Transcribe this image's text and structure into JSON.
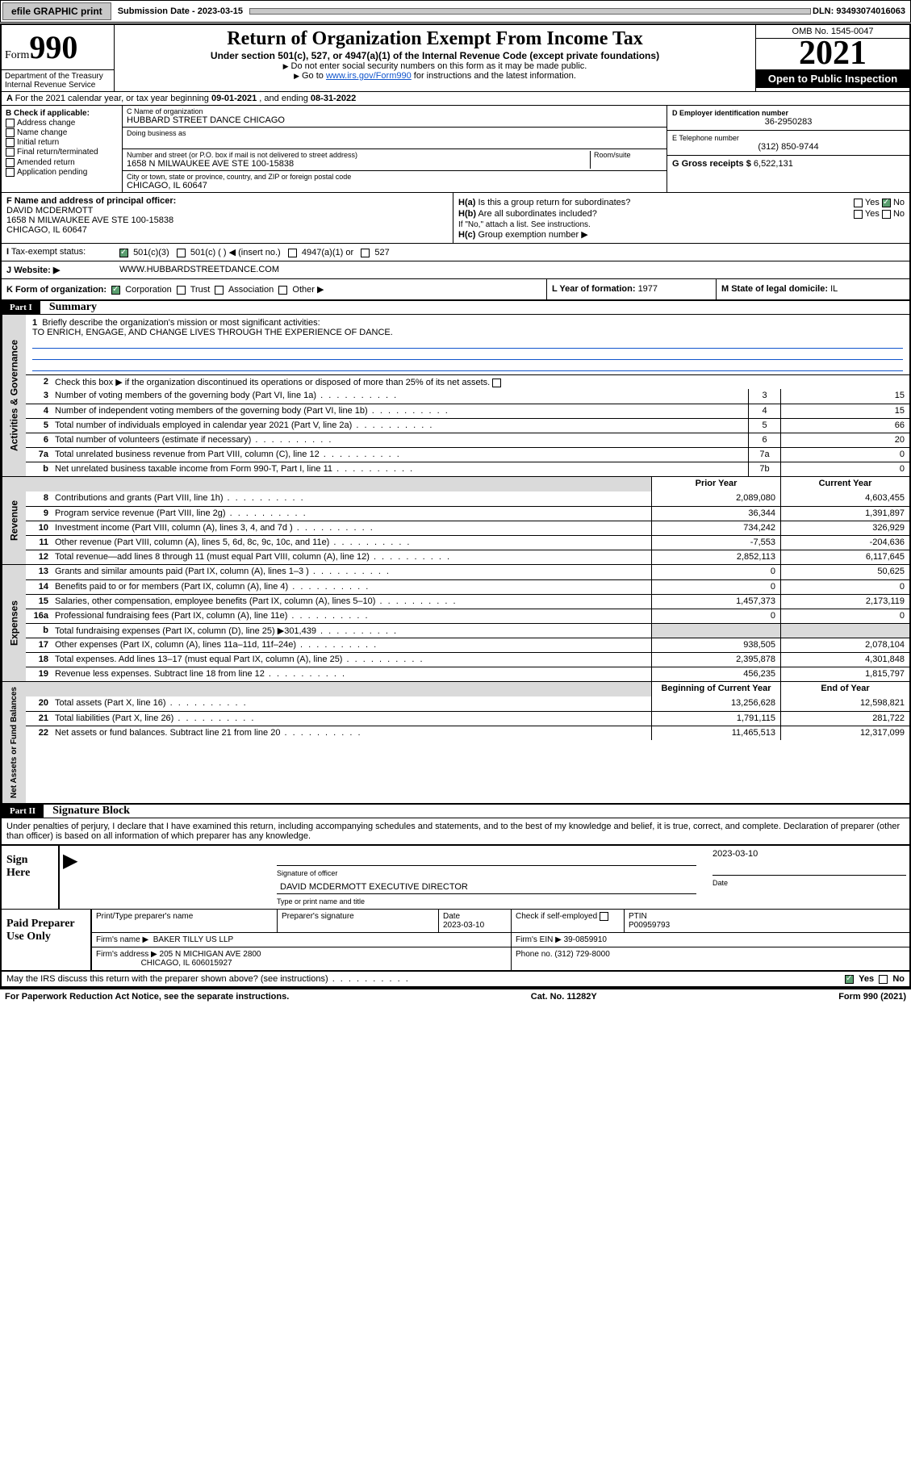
{
  "topbar": {
    "efile": "efile GRAPHIC print",
    "subdate_label": "Submission Date - ",
    "subdate": "2023-03-15",
    "dln": "DLN: 93493074016063"
  },
  "header": {
    "form_word": "Form",
    "form_num": "990",
    "title": "Return of Organization Exempt From Income Tax",
    "sub1": "Under section 501(c), 527, or 4947(a)(1) of the Internal Revenue Code (except private foundations)",
    "sub2": "Do not enter social security numbers on this form as it may be made public.",
    "sub3_pre": "Go to ",
    "sub3_link": "www.irs.gov/Form990",
    "sub3_post": " for instructions and the latest information.",
    "omb": "OMB No. 1545-0047",
    "year": "2021",
    "open": "Open to Public Inspection",
    "dept": "Department of the Treasury",
    "irs": "Internal Revenue Service"
  },
  "lineA": {
    "pre": "For the 2021 calendar year, or tax year beginning ",
    "begin": "09-01-2021",
    "mid": " , and ending ",
    "end": "08-31-2022"
  },
  "colB": {
    "hdr": "B Check if applicable:",
    "o1": "Address change",
    "o2": "Name change",
    "o3": "Initial return",
    "o4": "Final return/terminated",
    "o5": "Amended return",
    "o6": "Application pending"
  },
  "colC": {
    "name_label": "C Name of organization",
    "name": "HUBBARD STREET DANCE CHICAGO",
    "dba_label": "Doing business as",
    "addr_label": "Number and street (or P.O. box if mail is not delivered to street address)",
    "room_label": "Room/suite",
    "addr": "1658 N MILWAUKEE AVE STE 100-15838",
    "city_label": "City or town, state or province, country, and ZIP or foreign postal code",
    "city": "CHICAGO, IL  60647"
  },
  "colD": {
    "ein_label": "D Employer identification number",
    "ein": "36-2950283",
    "tel_label": "E Telephone number",
    "tel": "(312) 850-9744",
    "gross_label": "G Gross receipts $ ",
    "gross": "6,522,131"
  },
  "sectF": {
    "label": "F Name and address of principal officer:",
    "name": "DAVID MCDERMOTT",
    "addr1": "1658 N MILWAUKEE AVE STE 100-15838",
    "addr2": "CHICAGO, IL  60647"
  },
  "sectH": {
    "a": "Is this a group return for subordinates?",
    "b": "Are all subordinates included?",
    "bnote": "If \"No,\" attach a list. See instructions.",
    "c": "Group exemption number ▶",
    "yes": "Yes",
    "no": "No"
  },
  "rowI": {
    "label": "Tax-exempt status:",
    "o1": "501(c)(3)",
    "o2": "501(c) (   ) ◀ (insert no.)",
    "o3": "4947(a)(1) or",
    "o4": "527"
  },
  "rowJ": {
    "label": "Website: ▶",
    "val": "WWW.HUBBARDSTREETDANCE.COM"
  },
  "rowK": {
    "label": "K Form of organization:",
    "o1": "Corporation",
    "o2": "Trust",
    "o3": "Association",
    "o4": "Other ▶",
    "L_pre": "L Year of formation: ",
    "L": "1977",
    "M_pre": "M State of legal domicile: ",
    "M": "IL"
  },
  "part1": {
    "hdr": "Part I",
    "title": "Summary",
    "q1": "Briefly describe the organization's mission or most significant activities:",
    "mission": "TO ENRICH, ENGAGE, AND CHANGE LIVES THROUGH THE EXPERIENCE OF DANCE.",
    "q2": "Check this box ▶       if the organization discontinued its operations or disposed of more than 25% of its net assets.",
    "rows_gov": [
      {
        "n": "3",
        "d": "Number of voting members of the governing body (Part VI, line 1a)",
        "box": "3",
        "v": "15"
      },
      {
        "n": "4",
        "d": "Number of independent voting members of the governing body (Part VI, line 1b)",
        "box": "4",
        "v": "15"
      },
      {
        "n": "5",
        "d": "Total number of individuals employed in calendar year 2021 (Part V, line 2a)",
        "box": "5",
        "v": "66"
      },
      {
        "n": "6",
        "d": "Total number of volunteers (estimate if necessary)",
        "box": "6",
        "v": "20"
      },
      {
        "n": "7a",
        "d": "Total unrelated business revenue from Part VIII, column (C), line 12",
        "box": "7a",
        "v": "0"
      },
      {
        "n": "b",
        "d": "Net unrelated business taxable income from Form 990-T, Part I, line 11",
        "box": "7b",
        "v": "0"
      }
    ],
    "prior": "Prior Year",
    "current": "Current Year",
    "rows_rev": [
      {
        "n": "8",
        "d": "Contributions and grants (Part VIII, line 1h)",
        "p": "2,089,080",
        "c": "4,603,455"
      },
      {
        "n": "9",
        "d": "Program service revenue (Part VIII, line 2g)",
        "p": "36,344",
        "c": "1,391,897"
      },
      {
        "n": "10",
        "d": "Investment income (Part VIII, column (A), lines 3, 4, and 7d )",
        "p": "734,242",
        "c": "326,929"
      },
      {
        "n": "11",
        "d": "Other revenue (Part VIII, column (A), lines 5, 6d, 8c, 9c, 10c, and 11e)",
        "p": "-7,553",
        "c": "-204,636"
      },
      {
        "n": "12",
        "d": "Total revenue—add lines 8 through 11 (must equal Part VIII, column (A), line 12)",
        "p": "2,852,113",
        "c": "6,117,645"
      }
    ],
    "rows_exp": [
      {
        "n": "13",
        "d": "Grants and similar amounts paid (Part IX, column (A), lines 1–3 )",
        "p": "0",
        "c": "50,625"
      },
      {
        "n": "14",
        "d": "Benefits paid to or for members (Part IX, column (A), line 4)",
        "p": "0",
        "c": "0"
      },
      {
        "n": "15",
        "d": "Salaries, other compensation, employee benefits (Part IX, column (A), lines 5–10)",
        "p": "1,457,373",
        "c": "2,173,119"
      },
      {
        "n": "16a",
        "d": "Professional fundraising fees (Part IX, column (A), line 11e)",
        "p": "0",
        "c": "0"
      },
      {
        "n": "b",
        "d": "Total fundraising expenses (Part IX, column (D), line 25) ▶301,439",
        "p": "shade",
        "c": "shade"
      },
      {
        "n": "17",
        "d": "Other expenses (Part IX, column (A), lines 11a–11d, 11f–24e)",
        "p": "938,505",
        "c": "2,078,104"
      },
      {
        "n": "18",
        "d": "Total expenses. Add lines 13–17 (must equal Part IX, column (A), line 25)",
        "p": "2,395,878",
        "c": "4,301,848"
      },
      {
        "n": "19",
        "d": "Revenue less expenses. Subtract line 18 from line 12",
        "p": "456,235",
        "c": "1,815,797"
      }
    ],
    "begin": "Beginning of Current Year",
    "end": "End of Year",
    "rows_net": [
      {
        "n": "20",
        "d": "Total assets (Part X, line 16)",
        "p": "13,256,628",
        "c": "12,598,821"
      },
      {
        "n": "21",
        "d": "Total liabilities (Part X, line 26)",
        "p": "1,791,115",
        "c": "281,722"
      },
      {
        "n": "22",
        "d": "Net assets or fund balances. Subtract line 21 from line 20",
        "p": "11,465,513",
        "c": "12,317,099"
      }
    ],
    "side_gov": "Activities & Governance",
    "side_rev": "Revenue",
    "side_exp": "Expenses",
    "side_net": "Net Assets or Fund Balances"
  },
  "part2": {
    "hdr": "Part II",
    "title": "Signature Block",
    "decl": "Under penalties of perjury, I declare that I have examined this return, including accompanying schedules and statements, and to the best of my knowledge and belief, it is true, correct, and complete. Declaration of preparer (other than officer) is based on all information of which preparer has any knowledge.",
    "sign_here": "Sign Here",
    "sig_officer": "Signature of officer",
    "date_label": "Date",
    "date1": "2023-03-10",
    "officer_name": "DAVID MCDERMOTT  EXECUTIVE DIRECTOR",
    "type_name": "Type or print name and title",
    "paid": "Paid Preparer Use Only",
    "pt_name_lbl": "Print/Type preparer's name",
    "pt_sig_lbl": "Preparer's signature",
    "pt_date": "2023-03-10",
    "pt_check": "Check        if self-employed",
    "ptin_lbl": "PTIN",
    "ptin": "P00959793",
    "firm_name_lbl": "Firm's name      ▶",
    "firm_name": "BAKER TILLY US LLP",
    "firm_ein_lbl": "Firm's EIN ▶ ",
    "firm_ein": "39-0859910",
    "firm_addr_lbl": "Firm's address ▶",
    "firm_addr1": "205 N MICHIGAN AVE 2800",
    "firm_addr2": "CHICAGO, IL  606015927",
    "phone_lbl": "Phone no. ",
    "phone": "(312) 729-8000",
    "may": "May the IRS discuss this return with the preparer shown above? (see instructions)"
  },
  "footer": {
    "pra": "For Paperwork Reduction Act Notice, see the separate instructions.",
    "cat": "Cat. No. 11282Y",
    "form": "Form 990 (2021)"
  }
}
